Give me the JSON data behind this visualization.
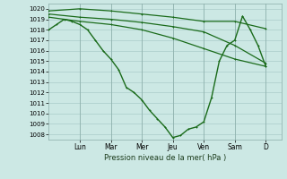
{
  "title": "Pression niveau de la mer( hPa )",
  "bg_color": "#cce8e4",
  "grid_color": "#aaccca",
  "line_color": "#1a6b1a",
  "y_min": 1007.5,
  "y_max": 1020.5,
  "y_ticks": [
    1008,
    1009,
    1010,
    1011,
    1012,
    1013,
    1014,
    1015,
    1016,
    1017,
    1018,
    1019,
    1020
  ],
  "x_day_labels": [
    "Lun",
    "Mar",
    "Mer",
    "Jeu",
    "Ven",
    "Sam",
    "D"
  ],
  "x_day_positions": [
    2,
    4,
    6,
    8,
    10,
    12,
    14
  ],
  "x_vline_positions": [
    2,
    4,
    6,
    8,
    10,
    12,
    14
  ],
  "series_flat": [
    {
      "x": [
        0,
        2,
        4,
        6,
        8,
        10,
        12,
        14
      ],
      "y": [
        1019.8,
        1020.0,
        1019.8,
        1019.5,
        1019.2,
        1018.8,
        1018.8,
        1018.1
      ]
    },
    {
      "x": [
        0,
        2,
        4,
        6,
        8,
        10,
        12,
        14
      ],
      "y": [
        1019.5,
        1019.2,
        1019.0,
        1018.7,
        1018.3,
        1017.8,
        1016.5,
        1014.8
      ]
    },
    {
      "x": [
        0,
        2,
        4,
        6,
        8,
        10,
        12,
        14
      ],
      "y": [
        1019.2,
        1018.8,
        1018.5,
        1018.0,
        1017.2,
        1016.2,
        1015.2,
        1014.5
      ]
    }
  ],
  "series_main": {
    "x": [
      0,
      0.5,
      1.0,
      1.5,
      2.0,
      2.5,
      3.0,
      3.5,
      4.0,
      4.5,
      5.0,
      5.5,
      6.0,
      6.5,
      7.0,
      7.5,
      8.0,
      8.5,
      9.0,
      9.5,
      10.0,
      10.5,
      11.0,
      11.5,
      12.0,
      12.5,
      13.0,
      13.5,
      14.0
    ],
    "y": [
      1018.0,
      1018.5,
      1019.0,
      1018.8,
      1018.5,
      1018.0,
      1017.0,
      1016.0,
      1015.2,
      1014.2,
      1012.5,
      1012.0,
      1011.3,
      1010.3,
      1009.5,
      1008.7,
      1007.7,
      1007.9,
      1008.5,
      1008.7,
      1009.2,
      1011.5,
      1015.0,
      1016.5,
      1017.0,
      1019.3,
      1018.0,
      1016.5,
      1014.5
    ]
  },
  "series_linewidth": 0.9,
  "main_linewidth": 1.0,
  "marker_size": 2.0,
  "marker_ew": 0.7
}
